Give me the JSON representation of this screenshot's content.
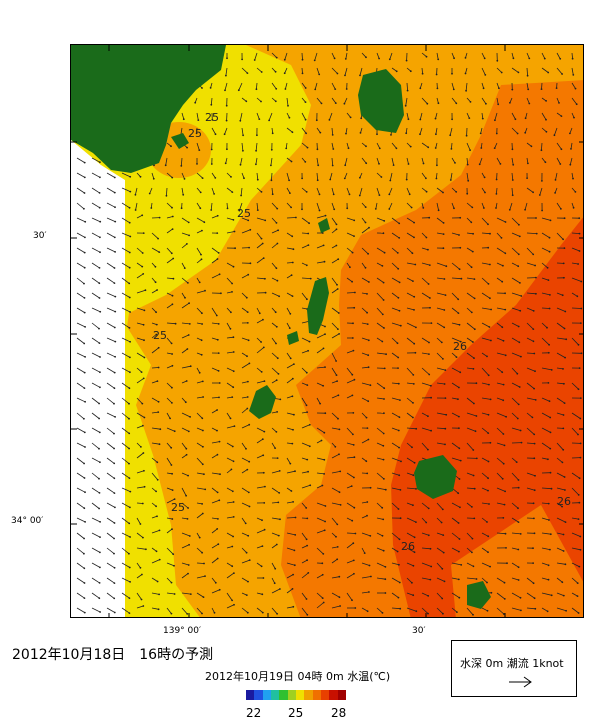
{
  "header": {
    "date_title": "2012年10月18日　16時の予測",
    "sub_title": "2012年10月19日 04時 0m 水温(℃)"
  },
  "axes": {
    "lat_ticks": [
      "30′",
      "34° 00′"
    ],
    "lon_ticks": [
      "139° 00′",
      "30′"
    ]
  },
  "contour_labels": [
    "25",
    "25",
    "25",
    "25",
    "25",
    "26",
    "26",
    "26"
  ],
  "colorbar": {
    "labels": [
      "22",
      "25",
      "28"
    ],
    "colors": [
      "#1a1aa0",
      "#2050e0",
      "#20a0f0",
      "#20c0a0",
      "#30c030",
      "#a0d020",
      "#f0e000",
      "#f0a000",
      "#f07000",
      "#e84000",
      "#c81000",
      "#a00000"
    ]
  },
  "legend": {
    "label": "水深 0m 潮流 1knot",
    "arrow_icon": "right-arrow-icon"
  },
  "colors": {
    "land": "#1a6b1a",
    "sst_25": "#f0e000",
    "sst_25_5": "#f5a400",
    "sst_26": "#f47800",
    "sst_26_5": "#ea4400",
    "frame": "#000000"
  }
}
